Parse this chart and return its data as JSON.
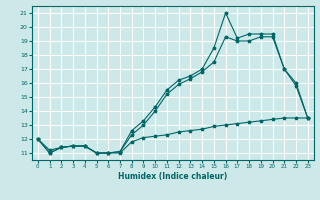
{
  "xlabel": "Humidex (Indice chaleur)",
  "bg_color": "#cce8e8",
  "grid_color": "#ffffff",
  "line_color": "#006666",
  "xlim": [
    -0.5,
    23.5
  ],
  "ylim": [
    10.5,
    21.5
  ],
  "xticks": [
    0,
    1,
    2,
    3,
    4,
    5,
    6,
    7,
    8,
    9,
    10,
    11,
    12,
    13,
    14,
    15,
    16,
    17,
    18,
    19,
    20,
    21,
    22,
    23
  ],
  "yticks": [
    11,
    12,
    13,
    14,
    15,
    16,
    17,
    18,
    19,
    20,
    21
  ],
  "line1_x": [
    0,
    1,
    2,
    3,
    4,
    5,
    6,
    7,
    8,
    9,
    10,
    11,
    12,
    13,
    14,
    15,
    16,
    17,
    18,
    19,
    20,
    21,
    22,
    23
  ],
  "line1_y": [
    12,
    11,
    11.4,
    11.5,
    11.5,
    11,
    11,
    11.1,
    12.6,
    13.3,
    14.3,
    15.5,
    16.2,
    16.5,
    17.0,
    18.5,
    21.0,
    19.2,
    19.5,
    19.5,
    19.5,
    17.0,
    16.0,
    13.5
  ],
  "line2_x": [
    0,
    1,
    2,
    3,
    4,
    5,
    6,
    7,
    8,
    9,
    10,
    11,
    12,
    13,
    14,
    15,
    16,
    17,
    18,
    19,
    20,
    21,
    22,
    23
  ],
  "line2_y": [
    12,
    11,
    11.4,
    11.5,
    11.5,
    11,
    11,
    11.1,
    12.3,
    13.0,
    14.0,
    15.2,
    15.9,
    16.3,
    16.8,
    17.5,
    19.3,
    19.0,
    19.0,
    19.3,
    19.3,
    17.0,
    15.8,
    13.5
  ],
  "line3_x": [
    0,
    1,
    2,
    3,
    4,
    5,
    6,
    7,
    8,
    9,
    10,
    11,
    12,
    13,
    14,
    15,
    16,
    17,
    18,
    19,
    20,
    21,
    22,
    23
  ],
  "line3_y": [
    12,
    11.2,
    11.4,
    11.5,
    11.5,
    11,
    11,
    11,
    11.8,
    12.1,
    12.2,
    12.3,
    12.5,
    12.6,
    12.7,
    12.9,
    13.0,
    13.1,
    13.2,
    13.3,
    13.4,
    13.5,
    13.5,
    13.5
  ]
}
